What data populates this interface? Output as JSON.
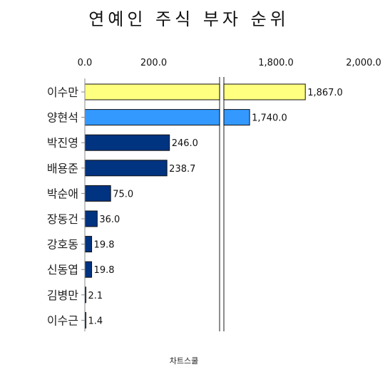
{
  "chart_data": {
    "type": "bar",
    "orientation": "horizontal",
    "title": "연예인 주식 부자 순위",
    "categories": [
      "이수만",
      "양현석",
      "박진영",
      "배용준",
      "박순애",
      "장동건",
      "강호동",
      "신동엽",
      "김병만",
      "이수근"
    ],
    "values": [
      1867.0,
      1740.0,
      246.0,
      238.7,
      75.0,
      36.0,
      19.8,
      19.8,
      2.1,
      1.4
    ],
    "value_labels": [
      "1,867.0",
      "1,740.0",
      "246.0",
      "238.7",
      "75.0",
      "36.0",
      "19.8",
      "19.8",
      "2.1",
      "1.4"
    ],
    "axis_break": {
      "from": 350,
      "to": 1550
    },
    "xlim": [
      0,
      2000
    ],
    "tick_labels_left": [
      "0.0",
      "200.0"
    ],
    "tick_labels_right": [
      "1,800.0",
      "2,000.0"
    ],
    "colors": {
      "top": "#FFFF80",
      "second": "#3399FF",
      "rest": "#003380"
    },
    "grid": false,
    "legend": "none",
    "source": "차트스쿨"
  }
}
